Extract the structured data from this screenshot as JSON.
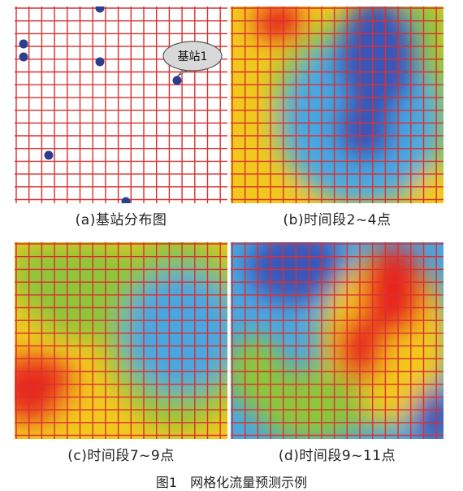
{
  "panels": {
    "a": {
      "caption": "(a)基站分布图",
      "bubble_label": "基站1"
    },
    "b": {
      "caption": "(b)时间段2~4点"
    },
    "c": {
      "caption": "(c)时间段7~9点"
    },
    "d": {
      "caption": "(d)时间段9~11点"
    }
  },
  "figure_caption": "图1　网格化流量预测示例",
  "colors": {
    "grid_line": "#d93030",
    "station_dot": "#2b3f8f",
    "low_traffic": "#3a55b8",
    "mid_low": "#4aa6e0",
    "mid": "#8fc43a",
    "mid_high": "#f2c81e",
    "high_traffic": "#e8261a"
  }
}
